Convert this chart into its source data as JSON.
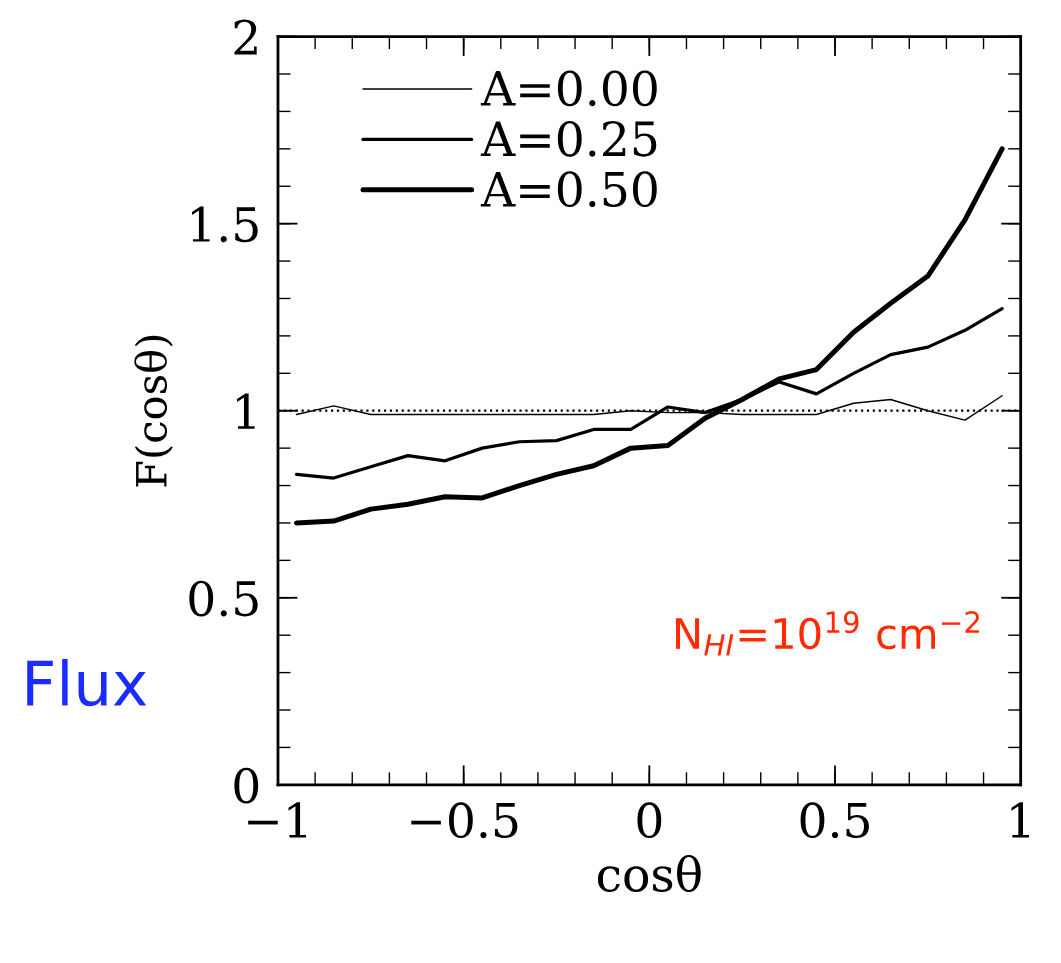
{
  "chart_data": {
    "type": "line",
    "xlabel": "cosθ",
    "ylabel": "F(cosθ)",
    "x": [
      -0.95,
      -0.85,
      -0.75,
      -0.65,
      -0.55,
      -0.45,
      -0.35,
      -0.25,
      -0.15,
      -0.05,
      0.05,
      0.15,
      0.25,
      0.35,
      0.45,
      0.55,
      0.65,
      0.75,
      0.85,
      0.95
    ],
    "series": [
      {
        "name": "A=0.00",
        "color": "#000000",
        "values": [
          0.99,
          1.013,
          0.99,
          0.99,
          0.99,
          0.99,
          0.99,
          0.99,
          0.99,
          1.0,
          0.995,
          0.995,
          0.99,
          0.99,
          0.99,
          1.02,
          1.03,
          1.0,
          0.975,
          1.04
        ]
      },
      {
        "name": "A=0.25",
        "color": "#000000",
        "values": [
          0.83,
          0.82,
          0.85,
          0.88,
          0.866,
          0.9,
          0.917,
          0.92,
          0.95,
          0.95,
          1.01,
          0.995,
          1.03,
          1.077,
          1.045,
          1.1,
          1.15,
          1.17,
          1.215,
          1.273
        ]
      },
      {
        "name": "A=0.50",
        "color": "#000000",
        "values": [
          0.7,
          0.705,
          0.737,
          0.75,
          0.77,
          0.767,
          0.8,
          0.83,
          0.853,
          0.9,
          0.907,
          0.98,
          1.03,
          1.085,
          1.11,
          1.21,
          1.287,
          1.36,
          1.51,
          1.7
        ]
      }
    ],
    "xlim": [
      -1,
      1
    ],
    "xticks": [
      {
        "value": -1,
        "label": "−1"
      },
      {
        "value": -0.5,
        "label": "−0.5"
      },
      0,
      0.5,
      1
    ],
    "ylim": [
      0,
      2
    ],
    "yticks": [
      0,
      0.5,
      1,
      1.5,
      2
    ],
    "ref_lines": [
      {
        "axis": "y",
        "value": 1,
        "line_style": "dotted",
        "color": "#000000"
      }
    ],
    "annotations": [
      "Flux",
      "N$_{HI}$=10$^{19}$ cm$^{−2}$"
    ],
    "legend": "top left",
    "grid": false,
    "marker": "none",
    "line_style": "solid"
  }
}
